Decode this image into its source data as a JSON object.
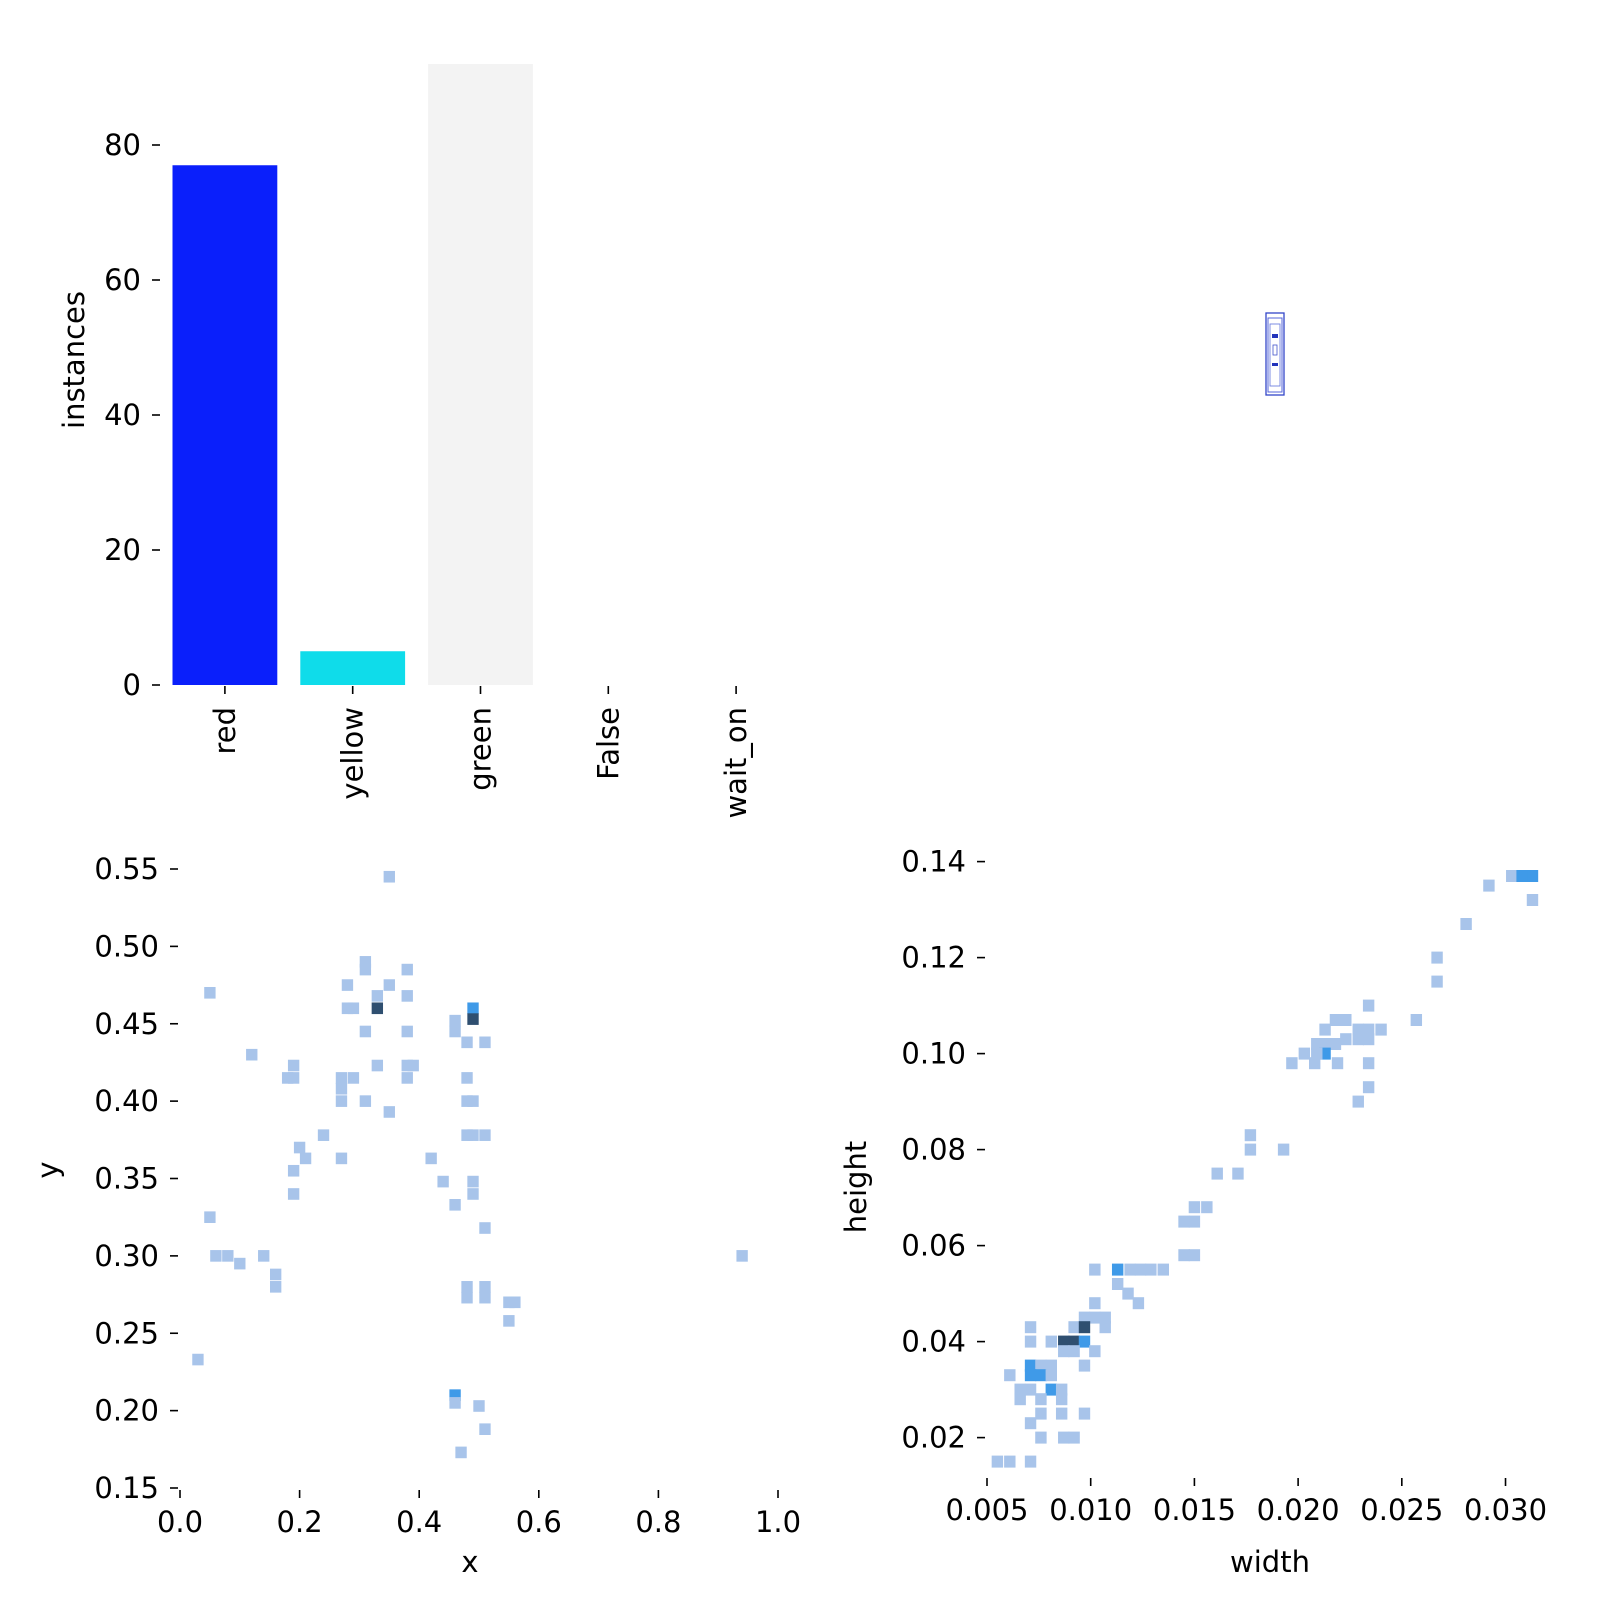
{
  "chart_data": [
    {
      "type": "bar",
      "ylabel": "instances",
      "categories": [
        "red",
        "yellow",
        "green",
        "False",
        "wait_on"
      ],
      "values": [
        77,
        5,
        92,
        0,
        0
      ],
      "ylim": [
        0,
        92
      ],
      "yticks": [
        "0",
        "20",
        "40",
        "60",
        "80"
      ],
      "colors": [
        "#0a1ffb",
        "#0fdcea",
        "#f3f3f3",
        "#ffffff",
        "#ffffff"
      ],
      "grid": false
    },
    {
      "type": "image",
      "description_icon": "bounding-boxes-overlay-icon",
      "box_color": "#3346c8"
    },
    {
      "type": "heatmap",
      "xlabel": "x",
      "ylabel": "y",
      "xlim": [
        0.0,
        1.0
      ],
      "ylim": [
        0.15,
        0.55
      ],
      "xticks": [
        "0.0",
        "0.2",
        "0.4",
        "0.6",
        "0.8",
        "1.0"
      ],
      "yticks": [
        "0.15",
        "0.20",
        "0.25",
        "0.30",
        "0.35",
        "0.40",
        "0.45",
        "0.50",
        "0.55"
      ],
      "bin_size": [
        0.019,
        0.0075
      ],
      "points": [
        [
          0.35,
          0.545,
          1
        ],
        [
          0.31,
          0.49,
          1
        ],
        [
          0.31,
          0.485,
          1
        ],
        [
          0.38,
          0.485,
          1
        ],
        [
          0.28,
          0.475,
          1
        ],
        [
          0.35,
          0.475,
          1
        ],
        [
          0.05,
          0.47,
          1
        ],
        [
          0.33,
          0.468,
          1
        ],
        [
          0.38,
          0.468,
          1
        ],
        [
          0.28,
          0.46,
          1
        ],
        [
          0.29,
          0.46,
          1
        ],
        [
          0.33,
          0.46,
          5
        ],
        [
          0.49,
          0.46,
          2
        ],
        [
          0.46,
          0.452,
          1
        ],
        [
          0.49,
          0.453,
          4
        ],
        [
          0.31,
          0.445,
          1
        ],
        [
          0.38,
          0.445,
          1
        ],
        [
          0.46,
          0.445,
          1
        ],
        [
          0.48,
          0.438,
          1
        ],
        [
          0.51,
          0.438,
          1
        ],
        [
          0.12,
          0.43,
          1
        ],
        [
          0.19,
          0.423,
          1
        ],
        [
          0.33,
          0.423,
          1
        ],
        [
          0.38,
          0.423,
          1
        ],
        [
          0.39,
          0.423,
          1
        ],
        [
          0.18,
          0.415,
          1
        ],
        [
          0.19,
          0.415,
          1
        ],
        [
          0.27,
          0.415,
          1
        ],
        [
          0.29,
          0.415,
          1
        ],
        [
          0.38,
          0.415,
          1
        ],
        [
          0.48,
          0.415,
          1
        ],
        [
          0.27,
          0.408,
          1
        ],
        [
          0.27,
          0.4,
          1
        ],
        [
          0.31,
          0.4,
          1
        ],
        [
          0.48,
          0.4,
          1
        ],
        [
          0.49,
          0.4,
          1
        ],
        [
          0.35,
          0.393,
          1
        ],
        [
          0.24,
          0.378,
          1
        ],
        [
          0.48,
          0.378,
          1
        ],
        [
          0.49,
          0.378,
          1
        ],
        [
          0.51,
          0.378,
          1
        ],
        [
          0.2,
          0.37,
          1
        ],
        [
          0.21,
          0.363,
          1
        ],
        [
          0.27,
          0.363,
          1
        ],
        [
          0.42,
          0.363,
          1
        ],
        [
          0.19,
          0.355,
          1
        ],
        [
          0.44,
          0.348,
          1
        ],
        [
          0.49,
          0.348,
          1
        ],
        [
          0.19,
          0.34,
          1
        ],
        [
          0.49,
          0.34,
          1
        ],
        [
          0.46,
          0.333,
          1
        ],
        [
          0.05,
          0.325,
          1
        ],
        [
          0.51,
          0.318,
          1
        ],
        [
          0.06,
          0.3,
          1
        ],
        [
          0.08,
          0.3,
          1
        ],
        [
          0.14,
          0.3,
          1
        ],
        [
          0.94,
          0.3,
          1
        ],
        [
          0.1,
          0.295,
          1
        ],
        [
          0.16,
          0.288,
          1
        ],
        [
          0.16,
          0.28,
          1
        ],
        [
          0.48,
          0.28,
          1
        ],
        [
          0.51,
          0.28,
          1
        ],
        [
          0.48,
          0.273,
          1
        ],
        [
          0.51,
          0.273,
          1
        ],
        [
          0.55,
          0.27,
          1
        ],
        [
          0.56,
          0.27,
          1
        ],
        [
          0.55,
          0.258,
          1
        ],
        [
          0.03,
          0.233,
          1
        ],
        [
          0.46,
          0.21,
          2
        ],
        [
          0.46,
          0.205,
          1
        ],
        [
          0.5,
          0.203,
          1
        ],
        [
          0.51,
          0.188,
          1
        ],
        [
          0.47,
          0.173,
          1
        ]
      ],
      "colors": {
        "low": "#a8c4ea",
        "mid": "#3f9ae8",
        "high": "#2f4f70"
      },
      "grid": false
    },
    {
      "type": "heatmap",
      "xlabel": "width",
      "ylabel": "height",
      "xlim": [
        0.005,
        0.032
      ],
      "ylim": [
        0.012,
        0.142
      ],
      "xticks": [
        "0.005",
        "0.010",
        "0.015",
        "0.020",
        "0.025",
        "0.030"
      ],
      "yticks": [
        "0.02",
        "0.04",
        "0.06",
        "0.08",
        "0.10",
        "0.12",
        "0.14"
      ],
      "bin_size": [
        0.00055,
        0.0025
      ],
      "points": [
        [
          0.0313,
          0.137,
          2
        ],
        [
          0.0303,
          0.137,
          1
        ],
        [
          0.0308,
          0.137,
          2
        ],
        [
          0.0292,
          0.135,
          1
        ],
        [
          0.0313,
          0.132,
          1
        ],
        [
          0.0281,
          0.127,
          1
        ],
        [
          0.0267,
          0.12,
          1
        ],
        [
          0.0267,
          0.115,
          1
        ],
        [
          0.0257,
          0.107,
          1
        ],
        [
          0.0218,
          0.107,
          1
        ],
        [
          0.0223,
          0.107,
          1
        ],
        [
          0.0234,
          0.11,
          1
        ],
        [
          0.0234,
          0.105,
          1
        ],
        [
          0.0213,
          0.105,
          1
        ],
        [
          0.0229,
          0.105,
          1
        ],
        [
          0.024,
          0.105,
          1
        ],
        [
          0.0223,
          0.103,
          1
        ],
        [
          0.0229,
          0.103,
          1
        ],
        [
          0.0234,
          0.103,
          1
        ],
        [
          0.0209,
          0.102,
          1
        ],
        [
          0.0213,
          0.102,
          1
        ],
        [
          0.0218,
          0.102,
          1
        ],
        [
          0.0213,
          0.1,
          2
        ],
        [
          0.0209,
          0.1,
          1
        ],
        [
          0.0203,
          0.1,
          1
        ],
        [
          0.0197,
          0.098,
          1
        ],
        [
          0.0208,
          0.098,
          1
        ],
        [
          0.0219,
          0.098,
          1
        ],
        [
          0.0234,
          0.098,
          1
        ],
        [
          0.0234,
          0.093,
          1
        ],
        [
          0.0229,
          0.09,
          1
        ],
        [
          0.0177,
          0.083,
          1
        ],
        [
          0.0177,
          0.08,
          1
        ],
        [
          0.0193,
          0.08,
          1
        ],
        [
          0.0161,
          0.075,
          1
        ],
        [
          0.0171,
          0.075,
          1
        ],
        [
          0.015,
          0.068,
          1
        ],
        [
          0.0156,
          0.068,
          1
        ],
        [
          0.015,
          0.065,
          1
        ],
        [
          0.0145,
          0.065,
          1
        ],
        [
          0.015,
          0.058,
          1
        ],
        [
          0.0145,
          0.058,
          1
        ],
        [
          0.0119,
          0.055,
          1
        ],
        [
          0.0124,
          0.055,
          1
        ],
        [
          0.0129,
          0.055,
          1
        ],
        [
          0.0135,
          0.055,
          1
        ],
        [
          0.0113,
          0.055,
          2
        ],
        [
          0.0102,
          0.055,
          1
        ],
        [
          0.0113,
          0.052,
          1
        ],
        [
          0.0118,
          0.05,
          1
        ],
        [
          0.0102,
          0.048,
          1
        ],
        [
          0.0097,
          0.045,
          1
        ],
        [
          0.0102,
          0.045,
          1
        ],
        [
          0.0107,
          0.045,
          1
        ],
        [
          0.0123,
          0.048,
          1
        ],
        [
          0.0092,
          0.043,
          1
        ],
        [
          0.0107,
          0.043,
          1
        ],
        [
          0.0097,
          0.043,
          5
        ],
        [
          0.0092,
          0.04,
          5
        ],
        [
          0.0087,
          0.04,
          4
        ],
        [
          0.0097,
          0.04,
          3
        ],
        [
          0.0081,
          0.04,
          1
        ],
        [
          0.0087,
          0.038,
          1
        ],
        [
          0.0102,
          0.038,
          1
        ],
        [
          0.0092,
          0.038,
          1
        ],
        [
          0.0071,
          0.043,
          1
        ],
        [
          0.0071,
          0.04,
          1
        ],
        [
          0.0097,
          0.035,
          1
        ],
        [
          0.0071,
          0.035,
          2
        ],
        [
          0.0076,
          0.035,
          1
        ],
        [
          0.0081,
          0.035,
          1
        ],
        [
          0.0071,
          0.033,
          2
        ],
        [
          0.0076,
          0.033,
          2
        ],
        [
          0.0081,
          0.033,
          1
        ],
        [
          0.0066,
          0.03,
          1
        ],
        [
          0.0071,
          0.03,
          1
        ],
        [
          0.0081,
          0.03,
          2
        ],
        [
          0.0086,
          0.03,
          1
        ],
        [
          0.0061,
          0.033,
          1
        ],
        [
          0.0066,
          0.028,
          1
        ],
        [
          0.0076,
          0.028,
          1
        ],
        [
          0.0086,
          0.028,
          1
        ],
        [
          0.0097,
          0.025,
          1
        ],
        [
          0.0076,
          0.025,
          1
        ],
        [
          0.0086,
          0.025,
          1
        ],
        [
          0.0071,
          0.023,
          1
        ],
        [
          0.0076,
          0.02,
          1
        ],
        [
          0.0087,
          0.02,
          1
        ],
        [
          0.0092,
          0.02,
          1
        ],
        [
          0.0071,
          0.015,
          1
        ],
        [
          0.0061,
          0.015,
          1
        ],
        [
          0.0055,
          0.015,
          1
        ]
      ],
      "colors": {
        "low": "#a8c4ea",
        "mid": "#3f9ae8",
        "high": "#2f4f70"
      },
      "grid": false
    }
  ]
}
